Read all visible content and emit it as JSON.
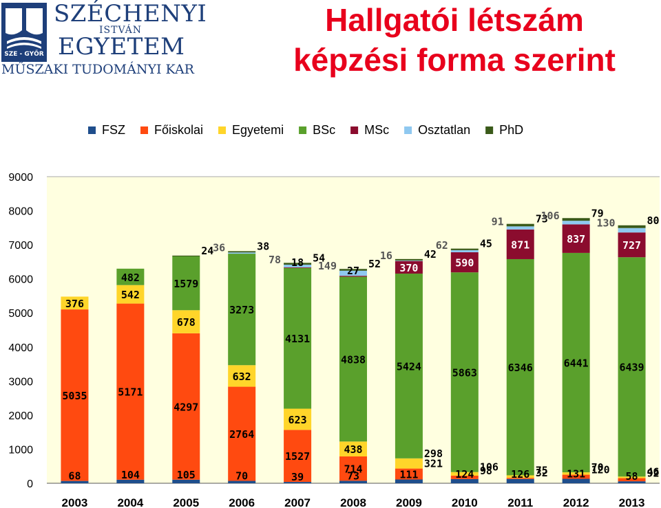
{
  "logo": {
    "line1": "SZÉCHENYI",
    "line2": "ISTVÁN",
    "line3": "EGYETEM",
    "badge": "SZE - GYŐR",
    "line4": "MŰSZAKI TUDOMÁNYI KAR"
  },
  "title": {
    "line1": "Hallgatói létszám",
    "line2": "képzési forma szerint"
  },
  "chart_data": {
    "type": "bar",
    "stacked": true,
    "categories": [
      "2003",
      "2004",
      "2005",
      "2006",
      "2007",
      "2008",
      "2009",
      "2010",
      "2011",
      "2012",
      "2013"
    ],
    "ylim": [
      0,
      9000
    ],
    "yticks": [
      0,
      1000,
      2000,
      3000,
      4000,
      5000,
      6000,
      7000,
      8000,
      9000
    ],
    "grid": false,
    "legend_position": "top",
    "series": [
      {
        "name": "FSZ",
        "color": "#1f4e8c",
        "values": [
          68,
          104,
          105,
          70,
          39,
          73,
          111,
          124,
          126,
          131,
          58
        ]
      },
      {
        "name": "Főiskolai",
        "color": "#ff4a10",
        "values": [
          5035,
          5171,
          4297,
          2764,
          1527,
          714,
          321,
          98,
          32,
          120,
          92
        ]
      },
      {
        "name": "Egyetemi",
        "color": "#ffd52a",
        "values": [
          376,
          542,
          678,
          632,
          623,
          438,
          298,
          106,
          75,
          70,
          46
        ]
      },
      {
        "name": "BSc",
        "color": "#5aa02c",
        "values": [
          null,
          482,
          1579,
          3273,
          4131,
          4838,
          5424,
          5863,
          6346,
          6441,
          6439
        ]
      },
      {
        "name": "MSc",
        "color": "#8b0c2e",
        "values": [
          null,
          null,
          null,
          null,
          18,
          27,
          370,
          590,
          871,
          837,
          727
        ]
      },
      {
        "name": "Osztatlan",
        "color": "#8fc8f0",
        "values": [
          null,
          null,
          null,
          36,
          78,
          149,
          16,
          62,
          91,
          106,
          130
        ]
      },
      {
        "name": "PhD",
        "color": "#3a5a1a",
        "values": [
          null,
          null,
          24,
          38,
          54,
          52,
          42,
          45,
          73,
          79,
          80
        ]
      }
    ],
    "labels": [
      {
        "cat": 0,
        "series": 0,
        "text": "68"
      },
      {
        "cat": 0,
        "series": 1,
        "text": "5035"
      },
      {
        "cat": 0,
        "series": 2,
        "text": "376"
      },
      {
        "cat": 1,
        "series": 0,
        "text": "104"
      },
      {
        "cat": 1,
        "series": 1,
        "text": "5171"
      },
      {
        "cat": 1,
        "series": 2,
        "text": "542"
      },
      {
        "cat": 1,
        "series": 3,
        "text": "482"
      },
      {
        "cat": 2,
        "series": 0,
        "text": "105"
      },
      {
        "cat": 2,
        "series": 1,
        "text": "4297"
      },
      {
        "cat": 2,
        "series": 2,
        "text": "678"
      },
      {
        "cat": 2,
        "series": 3,
        "text": "1579"
      },
      {
        "cat": 2,
        "series": 6,
        "text": "24"
      },
      {
        "cat": 3,
        "series": 0,
        "text": "70"
      },
      {
        "cat": 3,
        "series": 1,
        "text": "2764"
      },
      {
        "cat": 3,
        "series": 2,
        "text": "632"
      },
      {
        "cat": 3,
        "series": 3,
        "text": "3273"
      },
      {
        "cat": 3,
        "series": 5,
        "text": "36"
      },
      {
        "cat": 3,
        "series": 6,
        "text": "38"
      },
      {
        "cat": 4,
        "series": 0,
        "text": "39"
      },
      {
        "cat": 4,
        "series": 1,
        "text": "1527"
      },
      {
        "cat": 4,
        "series": 2,
        "text": "623"
      },
      {
        "cat": 4,
        "series": 3,
        "text": "4131"
      },
      {
        "cat": 4,
        "series": 4,
        "text": "18"
      },
      {
        "cat": 4,
        "series": 5,
        "text": "78"
      },
      {
        "cat": 4,
        "series": 6,
        "text": "54"
      },
      {
        "cat": 5,
        "series": 0,
        "text": "73"
      },
      {
        "cat": 5,
        "series": 1,
        "text": "714"
      },
      {
        "cat": 5,
        "series": 2,
        "text": "438"
      },
      {
        "cat": 5,
        "series": 3,
        "text": "4838"
      },
      {
        "cat": 5,
        "series": 4,
        "text": "27"
      },
      {
        "cat": 5,
        "series": 5,
        "text": "149"
      },
      {
        "cat": 5,
        "series": 6,
        "text": "52"
      },
      {
        "cat": 6,
        "series": 0,
        "text": "111"
      },
      {
        "cat": 6,
        "series": 1,
        "text": "321"
      },
      {
        "cat": 6,
        "series": 2,
        "text": "298"
      },
      {
        "cat": 6,
        "series": 3,
        "text": "5424"
      },
      {
        "cat": 6,
        "series": 4,
        "text": "370"
      },
      {
        "cat": 6,
        "series": 5,
        "text": "16"
      },
      {
        "cat": 6,
        "series": 6,
        "text": "42"
      },
      {
        "cat": 7,
        "series": 0,
        "text": "124"
      },
      {
        "cat": 7,
        "series": 1,
        "text": "98"
      },
      {
        "cat": 7,
        "series": 2,
        "text": "106"
      },
      {
        "cat": 7,
        "series": 3,
        "text": "5863"
      },
      {
        "cat": 7,
        "series": 4,
        "text": "590"
      },
      {
        "cat": 7,
        "series": 5,
        "text": "62"
      },
      {
        "cat": 7,
        "series": 6,
        "text": "45"
      },
      {
        "cat": 8,
        "series": 0,
        "text": "126"
      },
      {
        "cat": 8,
        "series": 1,
        "text": "32"
      },
      {
        "cat": 8,
        "series": 2,
        "text": "75"
      },
      {
        "cat": 8,
        "series": 3,
        "text": "6346"
      },
      {
        "cat": 8,
        "series": 4,
        "text": "871"
      },
      {
        "cat": 8,
        "series": 5,
        "text": "91"
      },
      {
        "cat": 8,
        "series": 6,
        "text": "73"
      },
      {
        "cat": 9,
        "series": 0,
        "text": "131"
      },
      {
        "cat": 9,
        "series": 1,
        "text": "120"
      },
      {
        "cat": 9,
        "series": 2,
        "text": "70"
      },
      {
        "cat": 9,
        "series": 3,
        "text": "6441"
      },
      {
        "cat": 9,
        "series": 4,
        "text": "837"
      },
      {
        "cat": 9,
        "series": 5,
        "text": "106"
      },
      {
        "cat": 9,
        "series": 6,
        "text": "79"
      },
      {
        "cat": 10,
        "series": 0,
        "text": "58"
      },
      {
        "cat": 10,
        "series": 1,
        "text": "92"
      },
      {
        "cat": 10,
        "series": 2,
        "text": "46"
      },
      {
        "cat": 10,
        "series": 3,
        "text": "6439"
      },
      {
        "cat": 10,
        "series": 4,
        "text": "727"
      },
      {
        "cat": 10,
        "series": 5,
        "text": "130"
      },
      {
        "cat": 10,
        "series": 6,
        "text": "80"
      }
    ]
  }
}
